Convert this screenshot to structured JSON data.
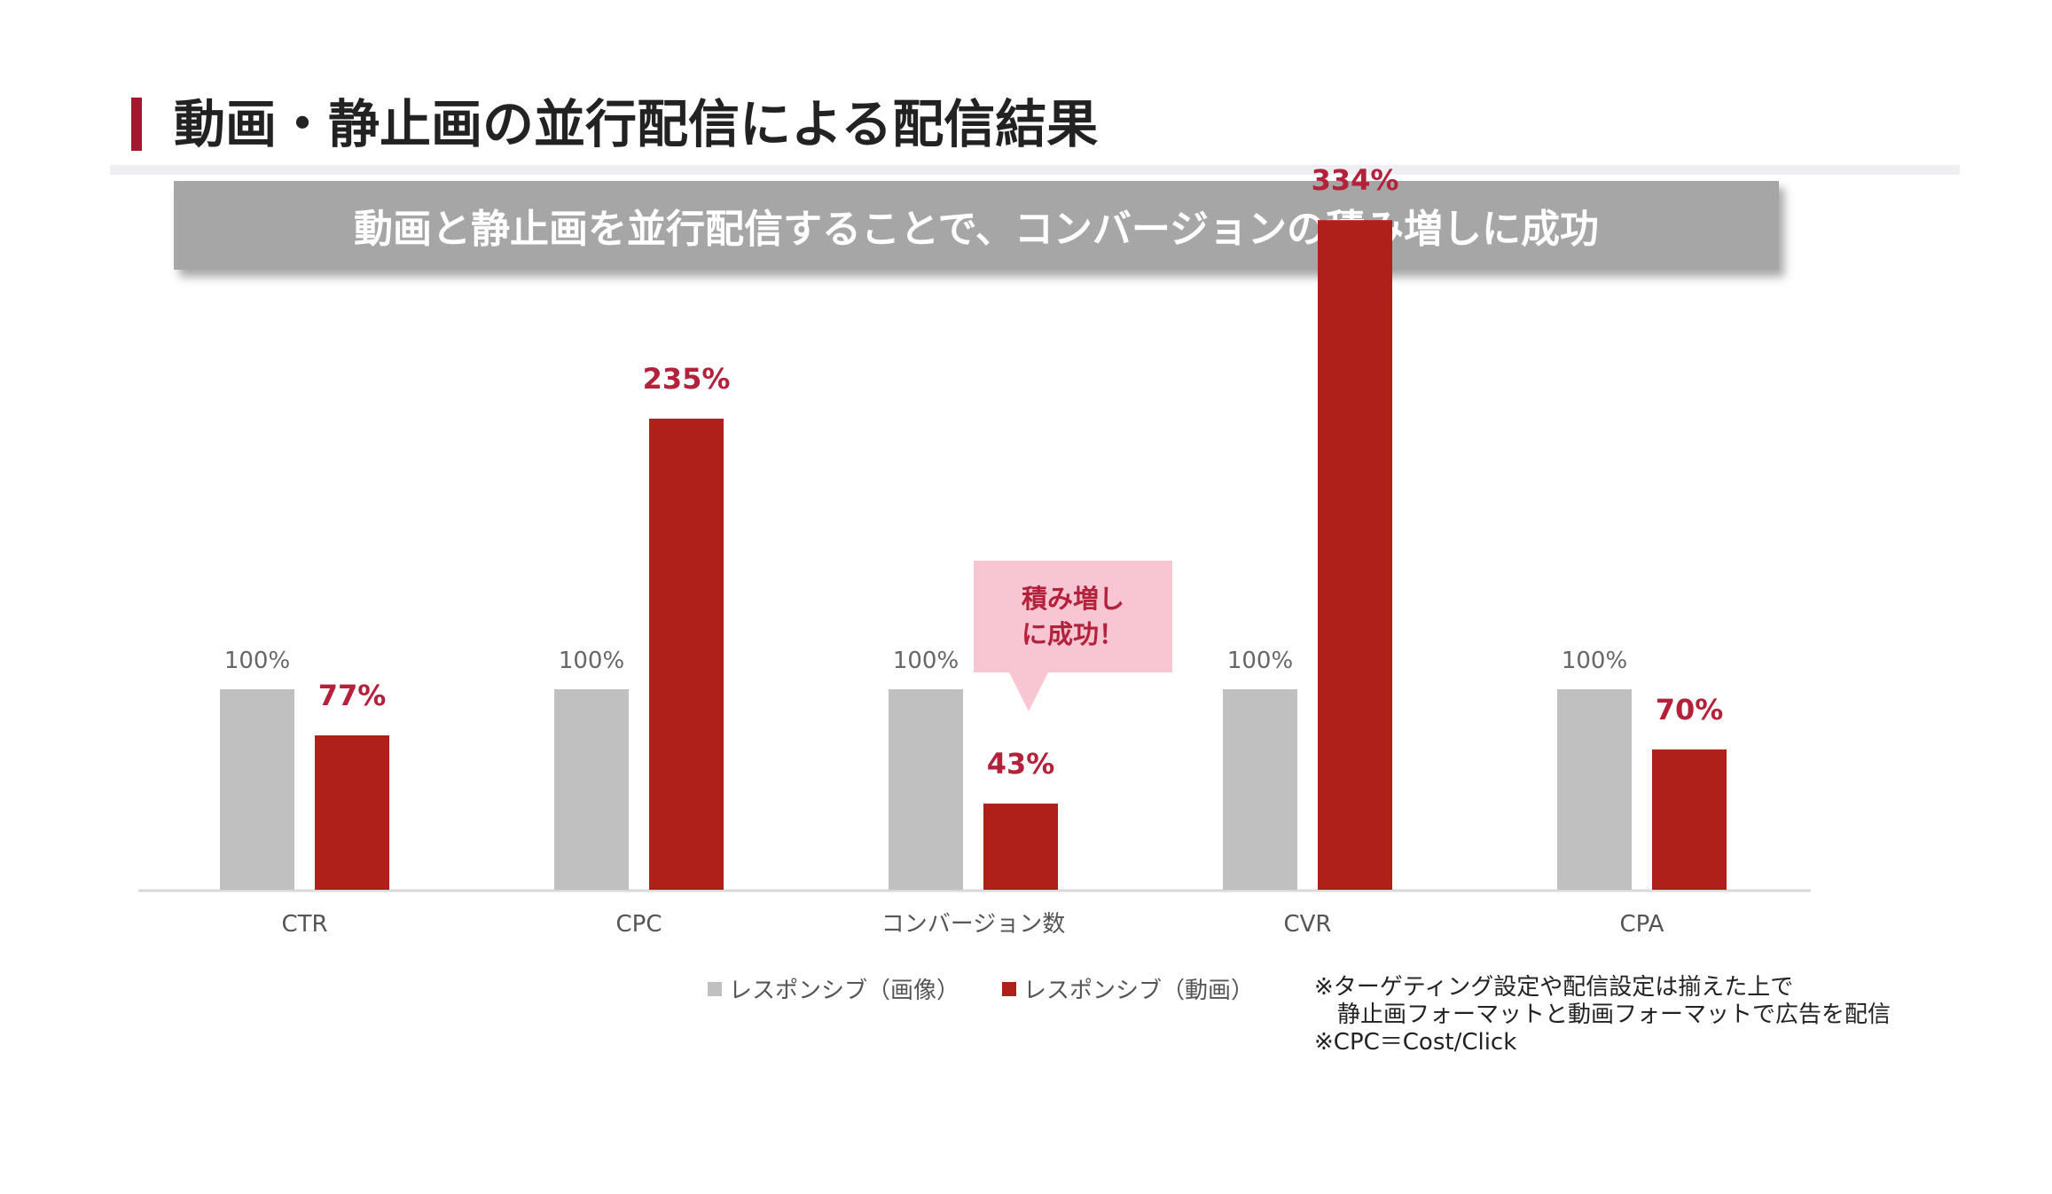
{
  "header": {
    "title": "動画・静止画の並行配信による配信結果",
    "banner": "動画と静止画を並行配信することで、コンバージョンの積み増しに成功"
  },
  "callout": {
    "line1": "積み増し",
    "line2": "に成功！"
  },
  "notes": [
    "※ターゲティング設定や配信設定は揃えた上で",
    "静止画フォーマットと動画フォーマットで広告を配信",
    "※CPC＝Cost/Click"
  ],
  "colors": {
    "image": "#c0c0c0",
    "video": "#b0201b",
    "video_label": "#b3213a",
    "accent": "#a3182a"
  },
  "chart_data": {
    "type": "bar",
    "categories": [
      "CTR",
      "CPC",
      "コンバージョン数",
      "CVR",
      "CPA"
    ],
    "series": [
      {
        "name": "レスポンシブ（画像）",
        "values": [
          100,
          100,
          100,
          100,
          100
        ],
        "labels": [
          "100%",
          "100%",
          "100%",
          "100%",
          "100%"
        ]
      },
      {
        "name": "レスポンシブ（動画）",
        "values": [
          77,
          235,
          43,
          334,
          70
        ],
        "labels": [
          "77%",
          "235%",
          "43%",
          "334%",
          "70%"
        ]
      }
    ],
    "title": "",
    "xlabel": "",
    "ylabel": "",
    "ylim": [
      0,
      334
    ],
    "legend": "bottom",
    "grid": false
  }
}
